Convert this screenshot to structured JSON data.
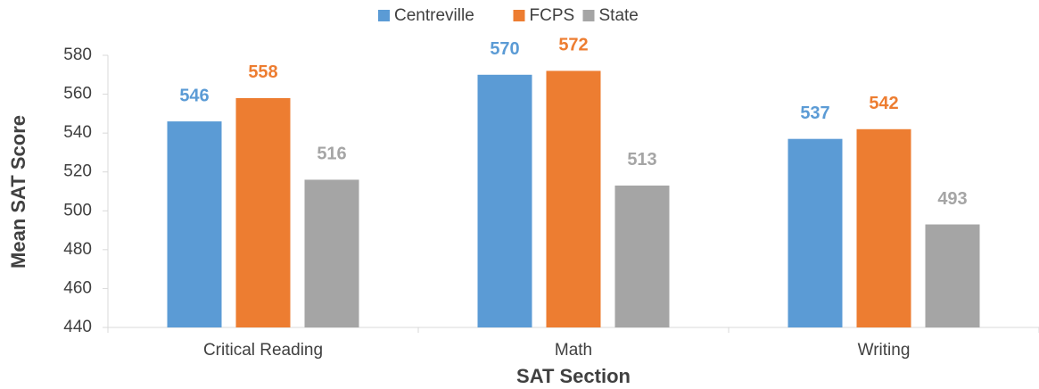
{
  "chart_data": {
    "type": "bar",
    "x_label": "SAT Section",
    "y_label": "Mean SAT Score",
    "categories": [
      "Critical Reading",
      "Math",
      "Writing"
    ],
    "series": [
      {
        "name": "Centreville",
        "color": "#5b9bd5",
        "values": [
          546,
          570,
          537
        ]
      },
      {
        "name": "FCPS",
        "color": "#ed7d31",
        "values": [
          558,
          572,
          542
        ]
      },
      {
        "name": "State",
        "color": "#a5a5a5",
        "values": [
          516,
          513,
          493
        ]
      }
    ],
    "ylim": [
      440,
      580
    ],
    "yticks": [
      440,
      460,
      480,
      500,
      520,
      540,
      560,
      580
    ],
    "grid": false,
    "legend": "top"
  }
}
